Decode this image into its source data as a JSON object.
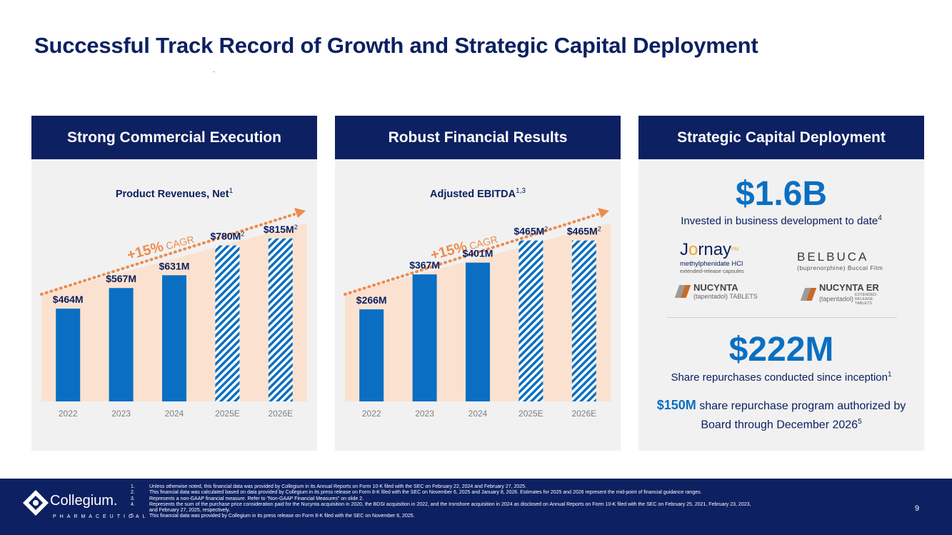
{
  "title": "Successful Track Record of Growth and Strategic Capital Deployment",
  "colors": {
    "navy": "#0d2061",
    "blue": "#0a6fc2",
    "orange": "#ee8a4c",
    "peach": "#fbe2d0",
    "panel_bg": "#f1f1f1"
  },
  "panels": {
    "commercial": {
      "header": "Strong Commercial Execution"
    },
    "financial": {
      "header": "Robust Financial Results"
    },
    "capital": {
      "header": "Strategic Capital Deployment"
    }
  },
  "chart_data": [
    {
      "type": "bar",
      "title": "Product Revenues, Net",
      "title_sup": "1",
      "categories": [
        "2022",
        "2023",
        "2024",
        "2025E",
        "2026E"
      ],
      "values": [
        464,
        567,
        631,
        780,
        815
      ],
      "value_labels": [
        "$464M",
        "$567M",
        "$631M",
        "$780M",
        "$815M"
      ],
      "label_sups": [
        "",
        "",
        "",
        "2",
        "2"
      ],
      "estimate_flags": [
        false,
        false,
        false,
        true,
        true
      ],
      "ylim": [
        0,
        900
      ],
      "annotation": {
        "prefix": "+15%",
        "suffix": " CAGR"
      },
      "xlabel": "",
      "ylabel": ""
    },
    {
      "type": "bar",
      "title": "Adjusted EBITDA",
      "title_sup": "1,3",
      "categories": [
        "2022",
        "2023",
        "2024",
        "2025E",
        "2026E"
      ],
      "values": [
        266,
        367,
        401,
        465,
        465
      ],
      "value_labels": [
        "$266M",
        "$367M",
        "$401M",
        "$465M",
        "$465M"
      ],
      "label_sups": [
        "",
        "",
        "",
        "2",
        "2"
      ],
      "estimate_flags": [
        false,
        false,
        false,
        true,
        true
      ],
      "ylim": [
        0,
        520
      ],
      "annotation": {
        "prefix": "+15%",
        "suffix": " CAGR"
      },
      "xlabel": "",
      "ylabel": ""
    }
  ],
  "capital": {
    "invested_value": "$1.6B",
    "invested_text": "Invested in business development to date",
    "invested_sup": "4",
    "logos": {
      "jornay": {
        "name_a": "J",
        "name_b": "o",
        "name_c": "rnay",
        "tm": "PM",
        "line2": "methylphenidate HCl",
        "line3": "extended-release capsules"
      },
      "belbuca": {
        "name": "BELBUCA",
        "sub": "(buprenorphine) Buccal Film"
      },
      "nucynta": {
        "name": "NUCYNTA",
        "sub": "(tapentadol) TABLETS"
      },
      "nucynta_er": {
        "name": "NUCYNTA ER",
        "sub": "(tapentadol)",
        "tiny": "EXTENDED-RELEASE TABLETS"
      }
    },
    "repurchase_value": "$222M",
    "repurchase_text": "Share repurchases conducted since inception",
    "repurchase_sup": "1",
    "program_amount": "$150M",
    "program_text": " share repurchase program authorized by",
    "program_text_2": "Board through December 2026",
    "program_sup": "5"
  },
  "footer": {
    "company": "Collegium.",
    "company_sub": "PHARMACEUTICAL",
    "page_number": "9",
    "footnotes": [
      {
        "num": "1.",
        "text": "Unless otherwise noted, this financial data was provided by Collegium in its Annual Reports on Form 10-K filed with the SEC on February 22, 2024 and February 27, 2025."
      },
      {
        "num": "2.",
        "text": "This financial data was calculated based on data provided by Collegium in its press release on Form 8-K filed with the SEC on November 6, 2025 and January 8, 2026. Estimates for 2025 and 2026 represent the mid-point of financial guidance ranges."
      },
      {
        "num": "3.",
        "text": "Represents a non-GAAP financial measure. Refer to “Non-GAAP Financial Measures” on slide 2."
      },
      {
        "num": "4.",
        "text": "Represents the sum of the purchase price consideration paid for the Nucynta acquisition in 2020, the BDSI acquisition in 2022, and the Ironshore acquisition in 2024 as disclosed on Annual Reports on Form 10-K filed with the SEC on February 25, 2021, February 23, 2023, and February 27, 2025, respectively."
      },
      {
        "num": "5.",
        "text": "This financial data was provided by Collegium in its press release on Form 8-K filed with the SEC on November 6, 2025."
      }
    ]
  }
}
